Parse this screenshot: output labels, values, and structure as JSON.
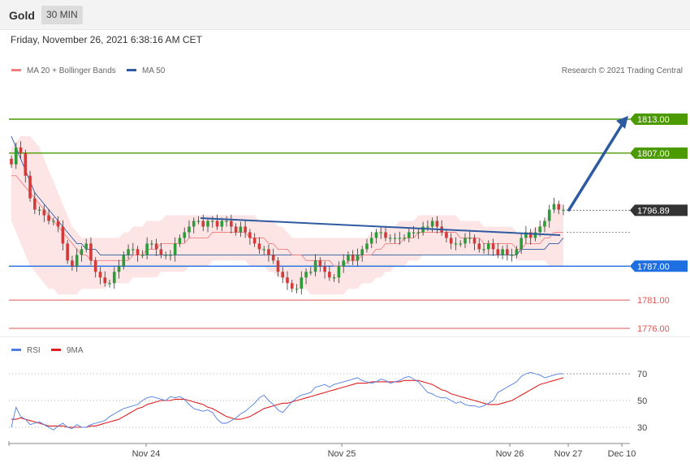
{
  "header": {
    "symbol": "Gold",
    "timeframe": "30 MIN",
    "datetime": "Friday, November 26, 2021 6:38:16 AM CET"
  },
  "legend_main": [
    {
      "label": "MA 20 + Bollinger Bands",
      "color": "#f08080"
    },
    {
      "label": "MA 50",
      "color": "#2e5aa0"
    }
  ],
  "credit": "Research © 2021 Trading Central",
  "legend_rsi": [
    {
      "label": "RSI",
      "color": "#4f7fe0"
    },
    {
      "label": "9MA",
      "color": "#e02020"
    }
  ],
  "chart_data": [
    {
      "type": "candlestick",
      "ylim": [
        1775,
        1818
      ],
      "last_price": {
        "value": 1796.89,
        "label": "1796.89",
        "color": "#333333"
      },
      "levels": [
        {
          "value": 1813.0,
          "label": "1813.00",
          "color": "#4a9a00",
          "style": "solid-tag"
        },
        {
          "value": 1807.0,
          "label": "1807.00",
          "color": "#4a9a00",
          "style": "solid-tag"
        },
        {
          "value": 1787.0,
          "label": "1787.00",
          "color": "#1f6fe0",
          "style": "solid-tag"
        },
        {
          "value": 1781.0,
          "label": "1781.00",
          "color": "#e05555",
          "style": "text"
        },
        {
          "value": 1776.0,
          "label": "1776.00",
          "color": "#e05555",
          "style": "text"
        }
      ],
      "close": [
        1805,
        1808,
        1807,
        1803,
        1799,
        1797,
        1797,
        1796,
        1795,
        1795,
        1794,
        1791,
        1788,
        1787,
        1789,
        1790,
        1791,
        1788,
        1786,
        1785,
        1784,
        1784,
        1786,
        1787,
        1789,
        1790,
        1790,
        1789,
        1789,
        1791,
        1791,
        1790,
        1789,
        1789,
        1789,
        1791,
        1792,
        1793,
        1794,
        1795,
        1795,
        1794,
        1795,
        1795,
        1794,
        1795,
        1795,
        1794,
        1793,
        1794,
        1793,
        1792,
        1791,
        1790,
        1790,
        1789,
        1788,
        1786,
        1785,
        1784,
        1783,
        1783,
        1785,
        1786,
        1786,
        1788,
        1787,
        1786,
        1785,
        1785,
        1787,
        1788,
        1789,
        1788,
        1789,
        1790,
        1791,
        1792,
        1793,
        1793,
        1792,
        1792,
        1792,
        1792,
        1792,
        1793,
        1793,
        1793,
        1794,
        1794,
        1795,
        1794,
        1793,
        1792,
        1791,
        1791,
        1791,
        1792,
        1792,
        1791,
        1790,
        1790,
        1791,
        1790,
        1789,
        1790,
        1789,
        1789,
        1790,
        1792,
        1793,
        1792,
        1793,
        1794,
        1795,
        1797,
        1798,
        1797,
        1797
      ],
      "ma20": [
        1803,
        1803,
        1802,
        1801,
        1800,
        1799,
        1798,
        1797,
        1796,
        1795,
        1794,
        1793,
        1792,
        1791,
        1790,
        1789,
        1789,
        1788,
        1788,
        1788,
        1788,
        1788,
        1788,
        1788,
        1788,
        1788,
        1789,
        1789,
        1789,
        1790,
        1790,
        1790,
        1791,
        1791,
        1791,
        1791,
        1791,
        1791,
        1792,
        1792,
        1792,
        1792,
        1792,
        1793,
        1793,
        1793,
        1793,
        1793,
        1793,
        1793,
        1793,
        1792,
        1792,
        1792,
        1792,
        1791,
        1791,
        1790,
        1790,
        1790,
        1789,
        1789,
        1789,
        1788,
        1788,
        1788,
        1788,
        1788,
        1788,
        1787,
        1787,
        1787,
        1788,
        1788,
        1788,
        1789,
        1789,
        1789,
        1790,
        1790,
        1791,
        1791,
        1791,
        1791,
        1792,
        1792,
        1792,
        1793,
        1793,
        1793,
        1793,
        1793,
        1793,
        1793,
        1793,
        1793,
        1792,
        1792,
        1792,
        1792,
        1792,
        1791,
        1791,
        1791,
        1791,
        1791,
        1791,
        1791,
        1790,
        1790,
        1791,
        1791,
        1791,
        1791,
        1792,
        1792,
        1793,
        1793,
        1793
      ],
      "ma50": [
        1810,
        1808,
        1806,
        1804,
        1802,
        1800,
        1799,
        1798,
        1797,
        1796,
        1795,
        1794,
        1793,
        1792,
        1791,
        1791,
        1790,
        1790,
        1790,
        1789,
        1789,
        1789,
        1789,
        1789,
        1789,
        1789,
        1789,
        1789,
        1789,
        1789,
        1789,
        1789,
        1789,
        1789,
        1789,
        1789,
        1789,
        1789,
        1789,
        1789,
        1789,
        1789,
        1789,
        1789,
        1789,
        1789,
        1789,
        1789,
        1789,
        1789,
        1789,
        1789,
        1789,
        1789,
        1789,
        1789,
        1789,
        1789,
        1789,
        1789,
        1789,
        1789,
        1789,
        1789,
        1789,
        1789,
        1789,
        1789,
        1789,
        1789,
        1789,
        1789,
        1789,
        1789,
        1789,
        1789,
        1789,
        1789,
        1789,
        1789,
        1789,
        1789,
        1789,
        1789,
        1789,
        1789,
        1789,
        1789,
        1789,
        1789,
        1789,
        1789,
        1789,
        1789,
        1789,
        1789,
        1789,
        1789,
        1789,
        1789,
        1789,
        1789,
        1789,
        1789,
        1789,
        1789,
        1789,
        1789,
        1789,
        1790,
        1790,
        1790,
        1790,
        1790,
        1790,
        1791,
        1791,
        1791,
        1792
      ],
      "bb_upper": [
        1808,
        1809,
        1810,
        1810,
        1810,
        1809,
        1808,
        1806,
        1804,
        1802,
        1800,
        1798,
        1796,
        1794,
        1793,
        1792,
        1792,
        1792,
        1792,
        1792,
        1792,
        1792,
        1792,
        1792,
        1793,
        1793,
        1794,
        1794,
        1794,
        1795,
        1795,
        1795,
        1795,
        1796,
        1796,
        1796,
        1796,
        1796,
        1796,
        1796,
        1796,
        1796,
        1796,
        1796,
        1796,
        1796,
        1796,
        1796,
        1796,
        1796,
        1796,
        1796,
        1796,
        1795,
        1795,
        1795,
        1795,
        1794,
        1794,
        1793,
        1792,
        1792,
        1792,
        1792,
        1792,
        1792,
        1792,
        1792,
        1792,
        1792,
        1792,
        1792,
        1792,
        1792,
        1792,
        1792,
        1792,
        1793,
        1793,
        1794,
        1794,
        1794,
        1794,
        1795,
        1795,
        1795,
        1795,
        1796,
        1796,
        1796,
        1796,
        1796,
        1796,
        1796,
        1796,
        1796,
        1795,
        1795,
        1795,
        1795,
        1795,
        1794,
        1794,
        1794,
        1794,
        1794,
        1794,
        1794,
        1793,
        1793,
        1793,
        1793,
        1794,
        1794,
        1795,
        1796,
        1797,
        1798,
        1798
      ],
      "bb_lower": [
        1795,
        1793,
        1791,
        1789,
        1787,
        1786,
        1785,
        1784,
        1783,
        1783,
        1782,
        1782,
        1782,
        1782,
        1782,
        1783,
        1783,
        1783,
        1783,
        1783,
        1783,
        1784,
        1784,
        1784,
        1784,
        1784,
        1785,
        1785,
        1785,
        1785,
        1785,
        1785,
        1786,
        1786,
        1786,
        1786,
        1786,
        1786,
        1787,
        1787,
        1787,
        1787,
        1787,
        1788,
        1788,
        1788,
        1788,
        1788,
        1788,
        1788,
        1788,
        1787,
        1787,
        1787,
        1787,
        1786,
        1786,
        1785,
        1785,
        1784,
        1784,
        1783,
        1783,
        1783,
        1782,
        1782,
        1782,
        1782,
        1782,
        1782,
        1782,
        1782,
        1783,
        1783,
        1783,
        1784,
        1784,
        1784,
        1785,
        1785,
        1786,
        1786,
        1787,
        1787,
        1787,
        1788,
        1788,
        1788,
        1789,
        1789,
        1789,
        1789,
        1789,
        1789,
        1789,
        1789,
        1789,
        1789,
        1789,
        1789,
        1789,
        1789,
        1789,
        1789,
        1789,
        1789,
        1789,
        1789,
        1788,
        1788,
        1788,
        1788,
        1788,
        1788,
        1788,
        1787,
        1787,
        1787,
        1787
      ],
      "trendline": [
        [
          1795.5,
          1792.5
        ]
      ],
      "arrow_target": 1813.3
    },
    {
      "type": "line",
      "series": [
        {
          "name": "RSI",
          "color": "#4f7fe0"
        },
        {
          "name": "9MA",
          "color": "#e02020"
        }
      ],
      "ylim": [
        20,
        80
      ],
      "yticks": [
        70,
        50,
        30
      ],
      "rsi": [
        30,
        45,
        38,
        36,
        32,
        33,
        34,
        32,
        30,
        28,
        31,
        33,
        30,
        29,
        32,
        30,
        30,
        32,
        33,
        34,
        35,
        38,
        40,
        42,
        44,
        45,
        46,
        47,
        50,
        52,
        53,
        52,
        51,
        50,
        53,
        52,
        53,
        51,
        47,
        44,
        43,
        42,
        43,
        41,
        36,
        33,
        33,
        35,
        37,
        40,
        42,
        45,
        48,
        52,
        54,
        50,
        47,
        43,
        41,
        45,
        49,
        52,
        54,
        55,
        56,
        60,
        61,
        62,
        60,
        62,
        63,
        64,
        65,
        66,
        67,
        65,
        64,
        63,
        64,
        66,
        65,
        63,
        64,
        65,
        67,
        68,
        66,
        64,
        60,
        56,
        55,
        53,
        52,
        52,
        50,
        48,
        49,
        47,
        46,
        46,
        45,
        46,
        48,
        50,
        56,
        58,
        60,
        62,
        64,
        68,
        70,
        71,
        70,
        69,
        67,
        68,
        69,
        70,
        70
      ],
      "ma9": [
        36,
        36,
        37,
        36,
        35,
        34,
        33,
        32,
        31,
        31,
        31,
        31,
        30,
        30,
        30,
        30,
        30,
        31,
        31,
        32,
        33,
        34,
        35,
        36,
        38,
        40,
        42,
        44,
        45,
        47,
        48,
        49,
        50,
        50,
        50,
        51,
        51,
        51,
        50,
        49,
        48,
        47,
        45,
        44,
        42,
        40,
        38,
        37,
        36,
        36,
        37,
        38,
        40,
        42,
        44,
        45,
        46,
        47,
        48,
        48,
        49,
        50,
        51,
        52,
        53,
        54,
        55,
        56,
        57,
        58,
        59,
        60,
        61,
        62,
        63,
        63,
        63,
        64,
        64,
        64,
        64,
        64,
        64,
        64,
        65,
        65,
        65,
        65,
        64,
        63,
        62,
        60,
        58,
        57,
        55,
        54,
        53,
        52,
        51,
        50,
        49,
        48,
        47,
        47,
        47,
        48,
        49,
        50,
        52,
        54,
        56,
        58,
        60,
        62,
        63,
        64,
        65,
        66,
        67
      ]
    }
  ],
  "x_axis": {
    "ticks": [
      "Nov 24",
      "Nov 25",
      "Nov 26",
      "Nov 27",
      "Dec 10"
    ]
  }
}
